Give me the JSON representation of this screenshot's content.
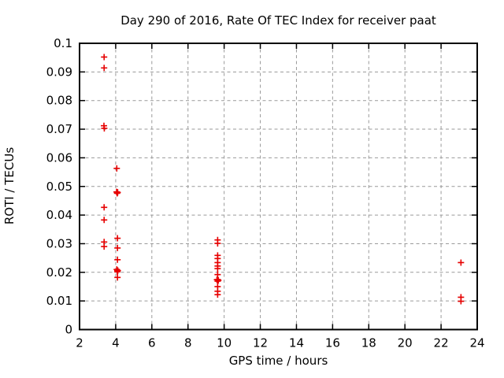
{
  "page": {
    "background_color": "#ffffff"
  },
  "chart_data": {
    "type": "scatter",
    "title": "Day 290 of 2016, Rate Of TEC Index for receiver paat",
    "xlabel": "GPS time / hours",
    "ylabel": "ROTI / TECUs",
    "xlim": [
      2,
      24
    ],
    "ylim": [
      0,
      0.1
    ],
    "xticks": [
      2,
      4,
      6,
      8,
      10,
      12,
      14,
      16,
      18,
      20,
      22,
      24
    ],
    "xtick_labels": [
      "2",
      "4",
      "6",
      "8",
      "10",
      "12",
      "14",
      "16",
      "18",
      "20",
      "22",
      "24"
    ],
    "yticks": [
      0,
      0.01,
      0.02,
      0.03,
      0.04,
      0.05,
      0.06,
      0.07,
      0.08,
      0.09,
      0.1
    ],
    "ytick_labels": [
      "0",
      "0.01",
      "0.02",
      "0.03",
      "0.04",
      "0.05",
      "0.06",
      "0.07",
      "0.08",
      "0.09",
      "0.1"
    ],
    "grid": true,
    "legend": null,
    "marker": "plus",
    "colors": {
      "marker": "#e60000",
      "grid": "#9a9a9a",
      "axis": "#000000",
      "background": "#ffffff"
    },
    "series": [
      {
        "name": "ROTI",
        "points": [
          [
            3.36,
            0.0952
          ],
          [
            3.36,
            0.0914
          ],
          [
            3.35,
            0.0712
          ],
          [
            3.37,
            0.0703
          ],
          [
            3.36,
            0.0427
          ],
          [
            3.36,
            0.0383
          ],
          [
            3.36,
            0.0306
          ],
          [
            3.36,
            0.029
          ],
          [
            4.06,
            0.0563
          ],
          [
            4.05,
            0.0481
          ],
          [
            4.08,
            0.048
          ],
          [
            4.11,
            0.0479
          ],
          [
            4.08,
            0.0476
          ],
          [
            4.1,
            0.0319
          ],
          [
            4.1,
            0.0285
          ],
          [
            4.1,
            0.0244
          ],
          [
            4.06,
            0.021
          ],
          [
            4.09,
            0.0207
          ],
          [
            4.12,
            0.0206
          ],
          [
            4.09,
            0.0202
          ],
          [
            4.1,
            0.0182
          ],
          [
            9.64,
            0.0313
          ],
          [
            9.64,
            0.0301
          ],
          [
            9.64,
            0.0259
          ],
          [
            9.64,
            0.0248
          ],
          [
            9.64,
            0.0234
          ],
          [
            9.64,
            0.0222
          ],
          [
            9.64,
            0.0213
          ],
          [
            9.64,
            0.0192
          ],
          [
            9.6,
            0.0174
          ],
          [
            9.64,
            0.0175
          ],
          [
            9.68,
            0.0172
          ],
          [
            9.64,
            0.0169
          ],
          [
            9.64,
            0.015
          ],
          [
            9.64,
            0.0134
          ],
          [
            9.64,
            0.0122
          ],
          [
            23.1,
            0.0234
          ],
          [
            23.1,
            0.0113
          ],
          [
            23.1,
            0.0099
          ]
        ]
      }
    ]
  }
}
